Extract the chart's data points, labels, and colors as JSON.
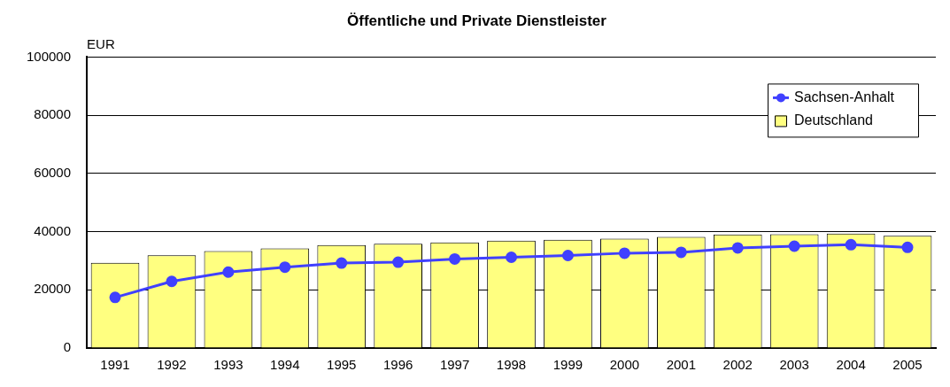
{
  "chart_data": {
    "type": "bar",
    "title": "Öffentliche und Private Dienstleister",
    "ylabel": "EUR",
    "categories": [
      "1991",
      "1992",
      "1993",
      "1994",
      "1995",
      "1996",
      "1997",
      "1998",
      "1999",
      "2000",
      "2001",
      "2002",
      "2003",
      "2004",
      "2005"
    ],
    "series": [
      {
        "name": "Sachsen-Anhalt",
        "type": "line",
        "color": "#4040ff",
        "values": [
          17400,
          22900,
          26100,
          27800,
          29200,
          29500,
          30600,
          31200,
          31800,
          32600,
          32900,
          34400,
          35000,
          35500,
          34600
        ]
      },
      {
        "name": "Deutschland",
        "color": "#ffff80",
        "values": [
          29300,
          31900,
          33300,
          34200,
          35400,
          35800,
          36300,
          36900,
          37200,
          37600,
          38200,
          39000,
          39100,
          39300,
          38600
        ]
      }
    ],
    "ylim": [
      0,
      100000
    ],
    "yticks": [
      0,
      20000,
      40000,
      60000,
      80000,
      100000
    ],
    "grid": "y",
    "legend": "top right",
    "marker": "circle"
  }
}
